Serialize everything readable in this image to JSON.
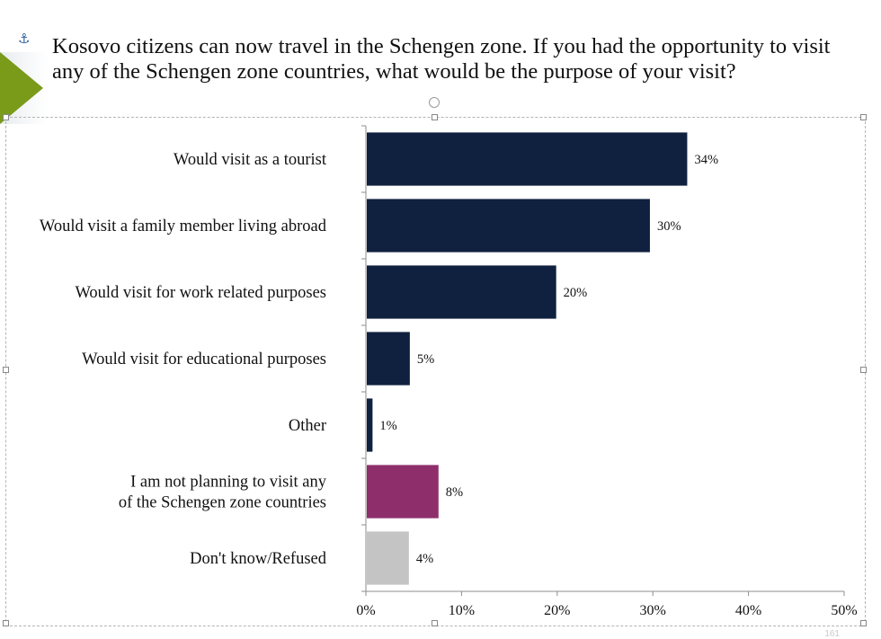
{
  "slide": {
    "title": "Kosovo citizens can now travel in the Schengen zone. If you had the opportunity to visit any of the Schengen zone countries, what would be the purpose of your visit?",
    "page_number": "161"
  },
  "chart_data": {
    "type": "bar",
    "orientation": "horizontal",
    "title": "",
    "xlabel": "",
    "ylabel": "",
    "xlim": [
      0,
      50
    ],
    "x_ticks": [
      "0%",
      "10%",
      "20%",
      "30%",
      "40%",
      "50%"
    ],
    "x_tick_values": [
      0,
      10,
      20,
      30,
      40,
      50
    ],
    "grid": false,
    "categories": [
      "Would visit as a tourist",
      "Would visit a family member living abroad",
      "Would visit for work related purposes",
      "Would visit for educational purposes",
      "Other",
      "I am not planning to visit any of the Schengen zone countries",
      "Don't know/Refused"
    ],
    "category_lines": [
      [
        "Would visit as a tourist"
      ],
      [
        "Would visit a family member living abroad"
      ],
      [
        "Would visit for work related purposes"
      ],
      [
        "Would visit for educational purposes"
      ],
      [
        "Other"
      ],
      [
        "I am not planning to visit any",
        "of the Schengen zone countries"
      ],
      [
        "Don't know/Refused"
      ]
    ],
    "values": [
      33.5,
      29.6,
      19.8,
      4.5,
      0.6,
      7.5,
      4.4
    ],
    "data_labels": [
      "34%",
      "30%",
      "20%",
      "5%",
      "1%",
      "8%",
      "4%"
    ],
    "colors": [
      "#10213f",
      "#10213f",
      "#10213f",
      "#10213f",
      "#10213f",
      "#8e2f6c",
      "#c4c4c4"
    ]
  }
}
